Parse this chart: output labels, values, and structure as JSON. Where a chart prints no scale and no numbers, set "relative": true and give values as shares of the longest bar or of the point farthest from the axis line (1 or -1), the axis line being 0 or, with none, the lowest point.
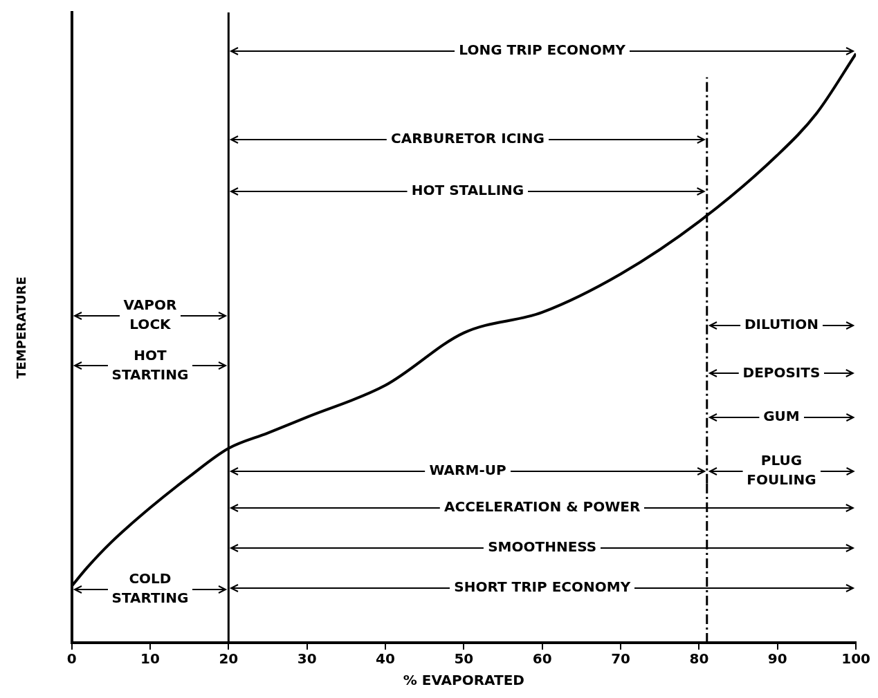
{
  "chart_data": {
    "type": "line",
    "relative": true,
    "xlabel": "% EVAPORATED",
    "ylabel": "TEMPERATURE",
    "xlim": [
      0,
      100
    ],
    "xticks": [
      0,
      10,
      20,
      30,
      40,
      50,
      60,
      70,
      80,
      90,
      100
    ],
    "grid": false,
    "legend": false,
    "marker": "none",
    "line_style": "solid",
    "series": [
      {
        "color": "#000000",
        "x": [
          0,
          2,
          5,
          10,
          15,
          20,
          25,
          30,
          40,
          50,
          60,
          70,
          80,
          90,
          95,
          100
        ],
        "values": [
          0.096,
          0.128,
          0.17,
          0.229,
          0.282,
          0.33,
          0.356,
          0.383,
          0.437,
          0.526,
          0.561,
          0.626,
          0.715,
          0.828,
          0.899,
          1
        ]
      }
    ],
    "ref_lines": [
      {
        "axis": "x",
        "value": 20,
        "line_style": "solid"
      },
      {
        "axis": "x",
        "value": 81,
        "line_style": "dashed"
      }
    ],
    "annotations": [
      "LONG TRIP ECONOMY",
      "CARBURETOR ICING",
      "HOT STALLING",
      "VAPOR LOCK",
      "HOT STARTING",
      "DILUTION",
      "DEPOSITS",
      "GUM",
      "WARM-UP",
      "PLUG FOULING",
      "ACCELERATION & POWER",
      "SMOOTHNESS",
      "COLD STARTING",
      "SHORT TRIP ECONOMY"
    ]
  }
}
